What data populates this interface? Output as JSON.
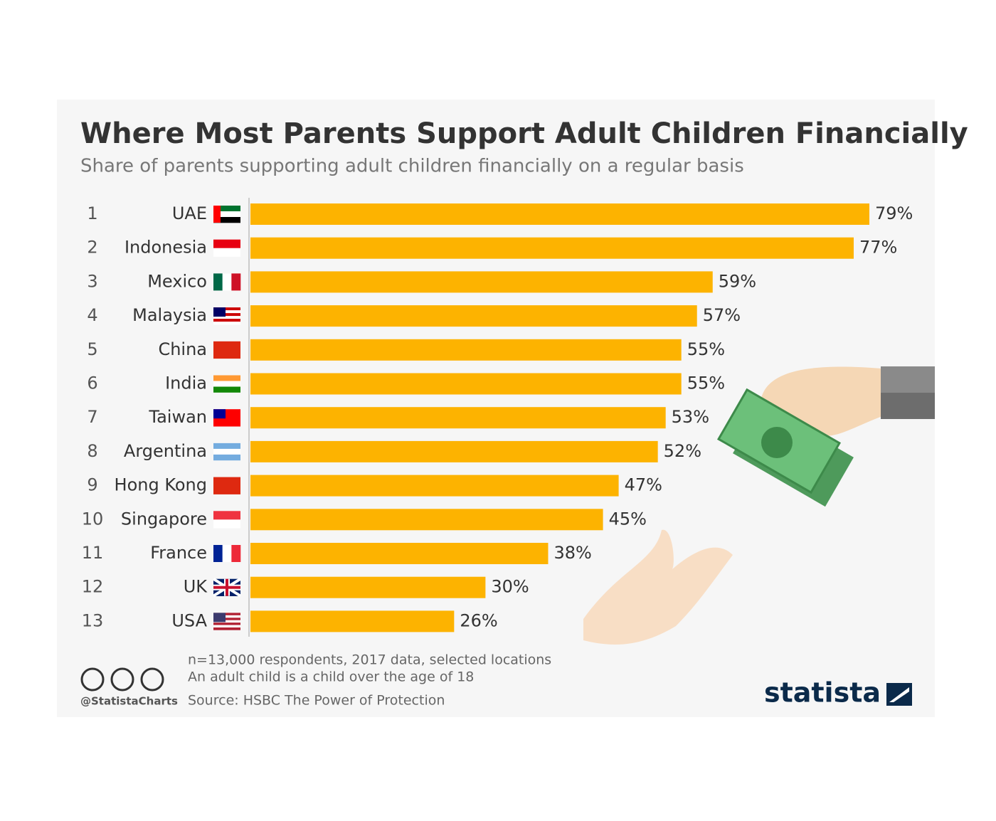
{
  "chart_data": {
    "type": "bar",
    "title": "Where Most Parents Support Adult Children Financially",
    "subtitle": "Share of parents supporting adult children financially on a regular basis",
    "ranks": [
      1,
      2,
      3,
      4,
      5,
      6,
      7,
      8,
      9,
      10,
      11,
      12,
      13
    ],
    "categories": [
      "UAE",
      "Indonesia",
      "Mexico",
      "Malaysia",
      "China",
      "India",
      "Taiwan",
      "Argentina",
      "Hong Kong",
      "Singapore",
      "France",
      "UK",
      "USA"
    ],
    "values": [
      79,
      77,
      59,
      57,
      55,
      55,
      53,
      52,
      47,
      45,
      38,
      30,
      26
    ],
    "value_labels": [
      "79%",
      "77%",
      "59%",
      "57%",
      "55%",
      "55%",
      "53%",
      "52%",
      "47%",
      "45%",
      "38%",
      "30%",
      "26%"
    ],
    "color": "#fdb300",
    "notes": [
      "n=13,000 respondents, 2017 data, selected locations",
      "An adult child is a child over the age of 18"
    ],
    "source": "Source: HSBC The Power of Protection",
    "credit": "@StatistaCharts",
    "brand": "statista"
  }
}
